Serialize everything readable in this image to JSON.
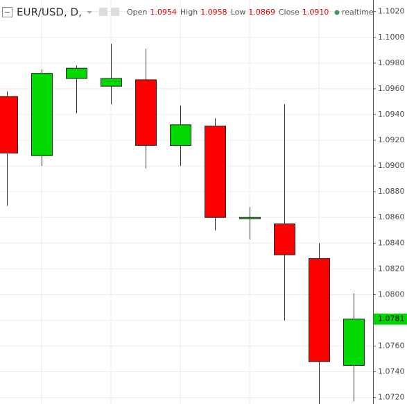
{
  "chart_data": {
    "type": "candlestick",
    "title": "EUR/USD, D,",
    "legend": [
      {
        "label": "Open",
        "value": "1.0954"
      },
      {
        "label": "High",
        "value": "1.0958"
      },
      {
        "label": "Low",
        "value": "1.0869"
      },
      {
        "label": "Close",
        "value": "1.0910"
      }
    ],
    "status": "realtime",
    "categories": [
      null,
      null,
      null,
      null,
      null,
      null,
      null,
      null,
      null,
      null,
      null
    ],
    "open": [
      1.0954,
      1.0908,
      1.0968,
      1.0962,
      1.0967,
      1.0916,
      1.0931,
      1.0859,
      1.0855,
      1.0828,
      1.0745
    ],
    "high": [
      1.0958,
      1.0975,
      1.0978,
      1.0995,
      1.0991,
      1.0947,
      1.0937,
      1.0868,
      1.0948,
      1.084,
      1.0801
    ],
    "low": [
      1.0869,
      1.09,
      1.0941,
      1.0948,
      1.0898,
      1.09,
      1.085,
      1.0843,
      1.078,
      1.0713,
      1.0717
    ],
    "close": [
      1.091,
      1.0972,
      1.0976,
      1.0968,
      1.0916,
      1.0932,
      1.086,
      1.086,
      1.0831,
      1.0748,
      1.0781
    ],
    "up_color": "#00d800",
    "down_color": "#ff0000",
    "last_price": 1.0781,
    "ylim": [
      1.0715,
      1.1029
    ],
    "yticks": [
      {
        "value": 1.102,
        "label": "1.1020"
      },
      {
        "value": 1.1,
        "label": "1.1000"
      },
      {
        "value": 1.098,
        "label": "1.0980"
      },
      {
        "value": 1.096,
        "label": "1.0960"
      },
      {
        "value": 1.094,
        "label": "1.0940"
      },
      {
        "value": 1.092,
        "label": "1.0920"
      },
      {
        "value": 1.09,
        "label": "1.0900"
      },
      {
        "value": 1.088,
        "label": "1.0880"
      },
      {
        "value": 1.086,
        "label": "1.0860"
      },
      {
        "value": 1.084,
        "label": "1.0840"
      },
      {
        "value": 1.082,
        "label": "1.0820"
      },
      {
        "value": 1.08,
        "label": "1.0800"
      },
      {
        "value": 1.078,
        "label": "1.0780"
      },
      {
        "value": 1.076,
        "label": "1.0760"
      },
      {
        "value": 1.074,
        "label": "1.0740"
      },
      {
        "value": 1.072,
        "label": "1.0720"
      }
    ],
    "grid": true
  }
}
